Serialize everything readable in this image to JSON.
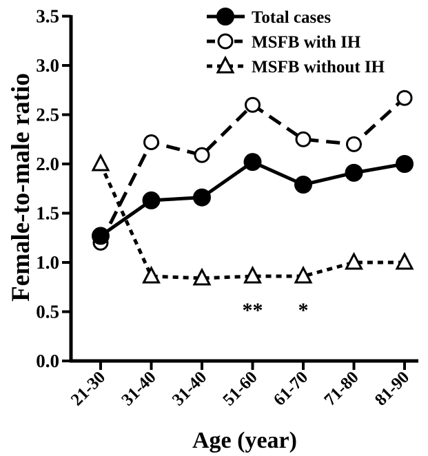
{
  "chart_data": {
    "type": "line",
    "xlabel": "Age (year)",
    "ylabel": "Female-to-male ratio",
    "categories": [
      "21-30",
      "31-40",
      "31-40",
      "51-60",
      "61-70",
      "71-80",
      "81-90"
    ],
    "ylim": [
      0,
      3.5
    ],
    "yticks": [
      "0.0",
      "0.5",
      "1.0",
      "1.5",
      "2.0",
      "2.5",
      "3.0",
      "3.5"
    ],
    "legend_position": "top-right",
    "grid": false,
    "series": [
      {
        "name": "Total cases",
        "marker": "filled-circle",
        "line": "solid",
        "values": [
          1.27,
          1.63,
          1.66,
          2.02,
          1.79,
          1.91,
          2.0
        ]
      },
      {
        "name": "MSFB with IH",
        "marker": "open-circle",
        "line": "dashed",
        "values": [
          1.2,
          2.22,
          2.09,
          2.6,
          2.25,
          2.2,
          2.67
        ]
      },
      {
        "name": "MSFB without IH",
        "marker": "open-triangle",
        "line": "dotted",
        "values": [
          2.0,
          0.86,
          0.84,
          0.86,
          0.86,
          1.0,
          1.0
        ]
      }
    ],
    "annotations": [
      {
        "text": "**",
        "category_index": 3,
        "y": 0.6
      },
      {
        "text": "*",
        "category_index": 4,
        "y": 0.6
      }
    ]
  }
}
